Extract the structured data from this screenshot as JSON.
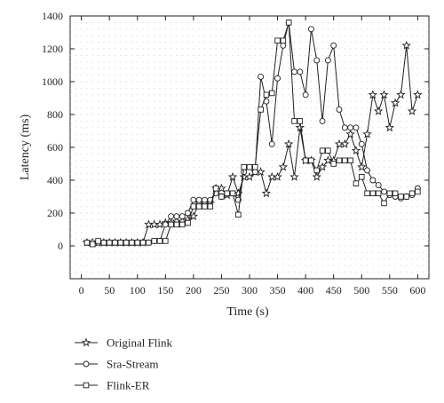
{
  "chart_data": {
    "type": "line",
    "title": "",
    "xlabel": "Time (s)",
    "ylabel": "Latency (ms)",
    "xlim": [
      -20,
      620
    ],
    "ylim": [
      -200,
      1400
    ],
    "xticks": [
      0,
      50,
      100,
      150,
      200,
      250,
      300,
      350,
      400,
      450,
      500,
      550,
      600
    ],
    "yticks": [
      0,
      200,
      400,
      600,
      800,
      1000,
      1200,
      1400
    ],
    "grid": "dotted",
    "legend_position": "below",
    "colors": {
      "line": "#231f20",
      "grid": "#bcbec0"
    },
    "series": [
      {
        "name": "Original Flink",
        "marker": "star",
        "x": [
          10,
          20,
          30,
          40,
          50,
          60,
          70,
          80,
          90,
          100,
          110,
          120,
          130,
          140,
          150,
          160,
          170,
          180,
          190,
          200,
          210,
          220,
          230,
          240,
          250,
          260,
          270,
          280,
          290,
          300,
          310,
          320,
          330,
          340,
          350,
          360,
          370,
          380,
          390,
          400,
          410,
          420,
          430,
          440,
          450,
          460,
          470,
          480,
          490,
          500,
          510,
          520,
          530,
          540,
          550,
          560,
          570,
          580,
          590,
          600
        ],
        "y": [
          20,
          20,
          20,
          20,
          20,
          20,
          20,
          20,
          20,
          20,
          20,
          130,
          130,
          130,
          140,
          140,
          150,
          150,
          160,
          180,
          260,
          260,
          260,
          350,
          350,
          310,
          420,
          320,
          420,
          420,
          450,
          450,
          320,
          420,
          420,
          480,
          620,
          420,
          720,
          520,
          520,
          420,
          480,
          520,
          520,
          620,
          620,
          680,
          580,
          480,
          680,
          920,
          820,
          920,
          720,
          870,
          920,
          1220,
          820,
          920
        ]
      },
      {
        "name": "Sra-Stream",
        "marker": "circle",
        "x": [
          10,
          20,
          30,
          40,
          50,
          60,
          70,
          80,
          90,
          100,
          110,
          120,
          130,
          140,
          150,
          160,
          170,
          180,
          190,
          200,
          210,
          220,
          230,
          240,
          250,
          260,
          270,
          280,
          290,
          300,
          310,
          320,
          330,
          340,
          350,
          360,
          370,
          380,
          390,
          400,
          410,
          420,
          430,
          440,
          450,
          460,
          470,
          480,
          490,
          500,
          510,
          520,
          530,
          540,
          550,
          560,
          570,
          580,
          590,
          600
        ],
        "y": [
          20,
          20,
          20,
          20,
          20,
          20,
          20,
          20,
          20,
          20,
          20,
          20,
          30,
          30,
          130,
          180,
          180,
          180,
          200,
          280,
          280,
          280,
          280,
          320,
          300,
          320,
          320,
          280,
          450,
          480,
          450,
          1030,
          880,
          620,
          1020,
          1220,
          1360,
          1060,
          1060,
          920,
          1320,
          1130,
          760,
          1130,
          1220,
          830,
          720,
          720,
          720,
          620,
          460,
          400,
          370,
          330,
          310,
          300,
          290,
          300,
          310,
          350
        ]
      },
      {
        "name": "Flink-ER",
        "marker": "square",
        "x": [
          10,
          20,
          30,
          40,
          50,
          60,
          70,
          80,
          90,
          100,
          110,
          120,
          130,
          140,
          150,
          160,
          170,
          180,
          190,
          200,
          210,
          220,
          230,
          240,
          250,
          260,
          270,
          280,
          290,
          300,
          310,
          320,
          330,
          340,
          350,
          360,
          370,
          380,
          390,
          400,
          410,
          420,
          430,
          440,
          450,
          460,
          470,
          480,
          490,
          500,
          510,
          520,
          530,
          540,
          550,
          560,
          570,
          580,
          590,
          600
        ],
        "y": [
          20,
          10,
          30,
          20,
          20,
          20,
          20,
          20,
          20,
          20,
          20,
          20,
          30,
          30,
          30,
          130,
          130,
          130,
          140,
          240,
          240,
          240,
          240,
          350,
          300,
          320,
          320,
          190,
          480,
          480,
          480,
          830,
          920,
          930,
          1250,
          1250,
          1360,
          760,
          760,
          520,
          520,
          460,
          580,
          580,
          500,
          520,
          520,
          520,
          380,
          420,
          320,
          320,
          320,
          260,
          320,
          320,
          300,
          300,
          320,
          330
        ]
      }
    ]
  }
}
